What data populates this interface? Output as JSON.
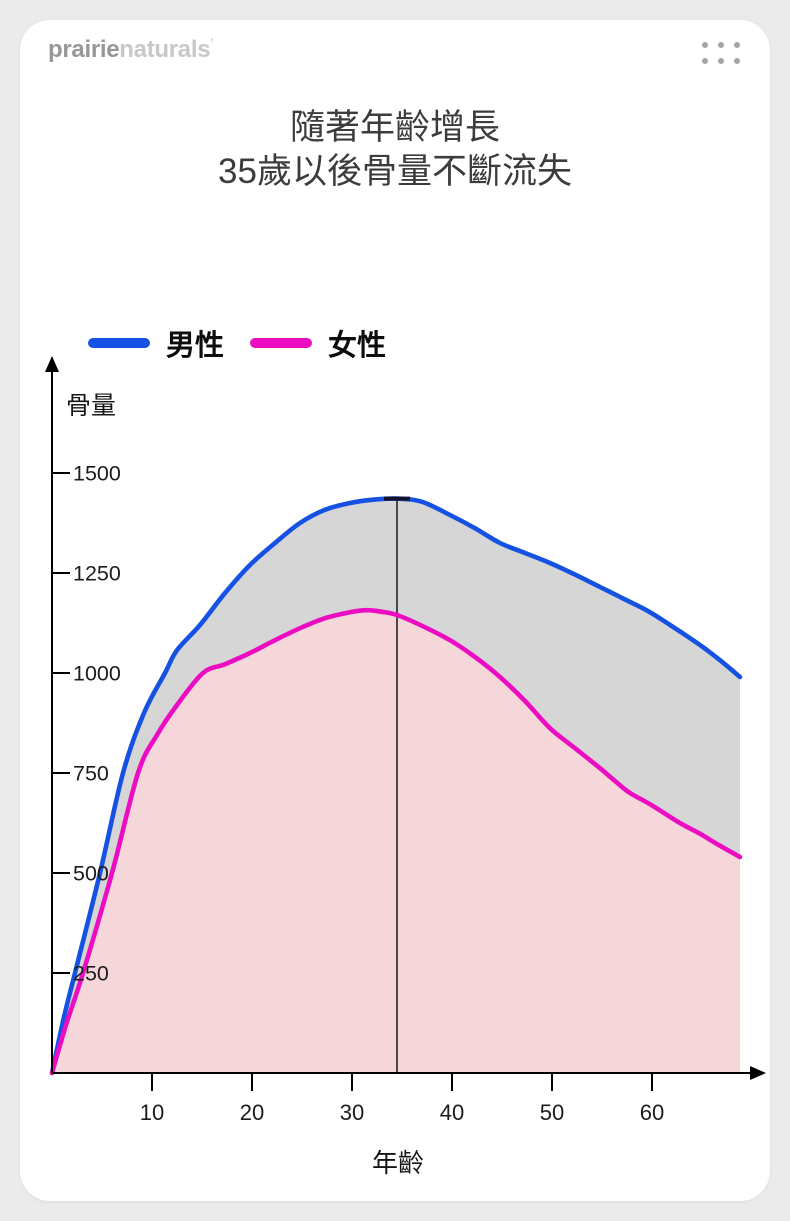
{
  "page": {
    "background": "#ebebeb",
    "card_background": "#ffffff"
  },
  "header": {
    "logo_part1": "prairie",
    "logo_part2": "naturals",
    "logo_tm": "'",
    "menu_icon": "grid-dots-icon",
    "menu_dot_color": "#a6a6a6"
  },
  "title": {
    "line1": "隨著年齡增長",
    "line2": "35歲以後骨量不斷流失"
  },
  "chart_data": {
    "type": "area",
    "title": "隨著年齡增長 35歲以後骨量不斷流失",
    "xlabel": "年齡",
    "ylabel": "骨量",
    "xlim": [
      0,
      69.6
    ],
    "ylim": [
      0,
      1780
    ],
    "x_ticks": [
      10,
      20,
      30,
      40,
      50,
      60
    ],
    "y_ticks": [
      250,
      500,
      750,
      1000,
      1250,
      1500
    ],
    "grid": false,
    "legend_position": "top-left",
    "legend": [
      {
        "label": "男性",
        "color": "#1552e4"
      },
      {
        "label": "女性",
        "color": "#ec0dc2"
      }
    ],
    "marker": {
      "age": 34.5,
      "top_value": 1436,
      "cap_color": "#10132b",
      "line_color": "#1a1a1a"
    },
    "fills": {
      "between_series": "#d6d6d6",
      "under_female": "#f5d7da"
    },
    "axis_color": "#000000",
    "tick_label_color": "#1c1c1c",
    "series": [
      {
        "name": "男性",
        "color": "#1552e4",
        "points": [
          [
            0,
            0
          ],
          [
            1.2,
            140
          ],
          [
            2.3,
            250
          ],
          [
            4.8,
            500
          ],
          [
            7.1,
            750
          ],
          [
            9.2,
            900
          ],
          [
            11.3,
            1000
          ],
          [
            12.5,
            1057
          ],
          [
            14.8,
            1120
          ],
          [
            17.3,
            1200
          ],
          [
            19.8,
            1270
          ],
          [
            22.3,
            1325
          ],
          [
            24.8,
            1375
          ],
          [
            27.3,
            1408
          ],
          [
            29.8,
            1425
          ],
          [
            32,
            1433
          ],
          [
            34.5,
            1436
          ],
          [
            37,
            1428
          ],
          [
            39.8,
            1395
          ],
          [
            42.3,
            1362
          ],
          [
            44.8,
            1325
          ],
          [
            47.3,
            1300
          ],
          [
            49.8,
            1275
          ],
          [
            52.3,
            1246
          ],
          [
            54.8,
            1215
          ],
          [
            57.3,
            1184
          ],
          [
            59.8,
            1152
          ],
          [
            62.3,
            1112
          ],
          [
            64.8,
            1070
          ],
          [
            66.8,
            1032
          ],
          [
            68.8,
            990
          ]
        ]
      },
      {
        "name": "女性",
        "color": "#ec0dc2",
        "points": [
          [
            0,
            0
          ],
          [
            1.4,
            120
          ],
          [
            3.1,
            250
          ],
          [
            6,
            500
          ],
          [
            8.6,
            750
          ],
          [
            10.5,
            845
          ],
          [
            12.5,
            920
          ],
          [
            15.1,
            1000
          ],
          [
            17.3,
            1022
          ],
          [
            19.8,
            1050
          ],
          [
            22.3,
            1082
          ],
          [
            24.8,
            1112
          ],
          [
            27.3,
            1137
          ],
          [
            29.8,
            1152
          ],
          [
            31.5,
            1157
          ],
          [
            33,
            1153
          ],
          [
            34.5,
            1145
          ],
          [
            37,
            1118
          ],
          [
            39.8,
            1082
          ],
          [
            42.3,
            1040
          ],
          [
            44.8,
            990
          ],
          [
            47.3,
            930
          ],
          [
            49.8,
            862
          ],
          [
            52.3,
            812
          ],
          [
            54.8,
            762
          ],
          [
            56.3,
            730
          ],
          [
            57.8,
            700
          ],
          [
            59.8,
            672
          ],
          [
            62.8,
            625
          ],
          [
            64.8,
            598
          ],
          [
            66.8,
            568
          ],
          [
            68.8,
            540
          ]
        ]
      }
    ]
  }
}
